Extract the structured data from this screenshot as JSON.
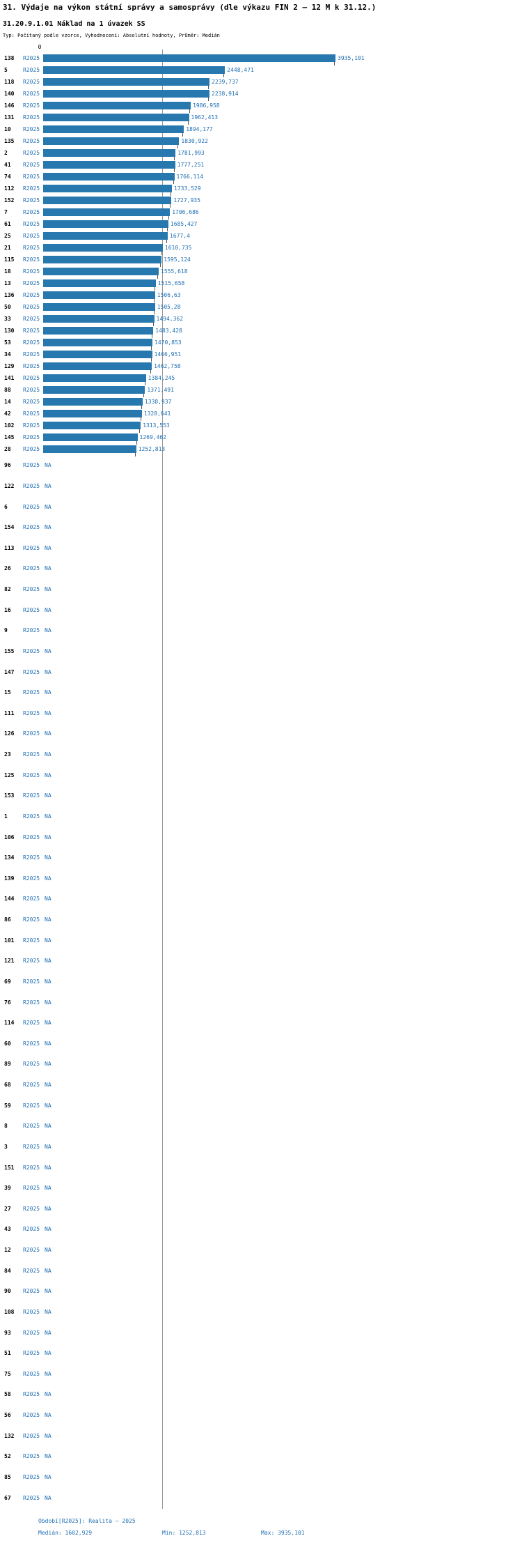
{
  "header": {
    "title": "31. Výdaje na výkon státní správy a samosprávy (dle výkazu FIN 2 – 12 M k 31.12.)",
    "subtitle": "31.20.9.1.01 Náklad na 1 úvazek SS",
    "meta": "Typ: Počítaný podle vzorce, Vyhodnocení: Absolutní hodnoty, Průměr: Medián"
  },
  "axis": {
    "zero_label": "0"
  },
  "footer": {
    "period": "Období[R2025]: Realita – 2025",
    "median": "Medián: 1602,929",
    "min": "Min: 1252,813",
    "max": "Max: 3935,101"
  },
  "colors": {
    "bar": "#2878b0",
    "blue_text": "#1f6fb4",
    "median_line": "#999999",
    "tick": "#555555"
  },
  "chart_data": {
    "type": "bar",
    "orientation": "horizontal",
    "series_label": "R2025",
    "x_axis": {
      "min": 0,
      "max_value": 3935.101,
      "zero_label": "0"
    },
    "median": 1602.929,
    "min": 1252.813,
    "max": 3935.101,
    "na_text": "NA",
    "rows": [
      {
        "id": "138",
        "value": 3935.101,
        "value_label": "3935,101"
      },
      {
        "id": "5",
        "value": 2448.471,
        "value_label": "2448,471"
      },
      {
        "id": "118",
        "value": 2239.737,
        "value_label": "2239,737"
      },
      {
        "id": "140",
        "value": 2238.914,
        "value_label": "2238,914"
      },
      {
        "id": "146",
        "value": 1986.958,
        "value_label": "1986,958"
      },
      {
        "id": "131",
        "value": 1962.413,
        "value_label": "1962,413"
      },
      {
        "id": "10",
        "value": 1894.177,
        "value_label": "1894,177"
      },
      {
        "id": "135",
        "value": 1830.922,
        "value_label": "1830,922"
      },
      {
        "id": "2",
        "value": 1781.993,
        "value_label": "1781,993"
      },
      {
        "id": "41",
        "value": 1777.251,
        "value_label": "1777,251"
      },
      {
        "id": "74",
        "value": 1766.114,
        "value_label": "1766,114"
      },
      {
        "id": "112",
        "value": 1733.529,
        "value_label": "1733,529"
      },
      {
        "id": "152",
        "value": 1727.935,
        "value_label": "1727,935"
      },
      {
        "id": "7",
        "value": 1706.686,
        "value_label": "1706,686"
      },
      {
        "id": "61",
        "value": 1685.427,
        "value_label": "1685,427"
      },
      {
        "id": "25",
        "value": 1677.4,
        "value_label": "1677,4"
      },
      {
        "id": "21",
        "value": 1610.735,
        "value_label": "1610,735"
      },
      {
        "id": "115",
        "value": 1595.124,
        "value_label": "1595,124"
      },
      {
        "id": "18",
        "value": 1555.618,
        "value_label": "1555,618"
      },
      {
        "id": "13",
        "value": 1515.658,
        "value_label": "1515,658"
      },
      {
        "id": "136",
        "value": 1506.63,
        "value_label": "1506,63"
      },
      {
        "id": "50",
        "value": 1505.28,
        "value_label": "1505,28"
      },
      {
        "id": "33",
        "value": 1494.362,
        "value_label": "1494,362"
      },
      {
        "id": "130",
        "value": 1483.428,
        "value_label": "1483,428"
      },
      {
        "id": "53",
        "value": 1470.853,
        "value_label": "1470,853"
      },
      {
        "id": "34",
        "value": 1466.951,
        "value_label": "1466,951"
      },
      {
        "id": "129",
        "value": 1462.758,
        "value_label": "1462,758"
      },
      {
        "id": "141",
        "value": 1384.245,
        "value_label": "1384,245"
      },
      {
        "id": "88",
        "value": 1371.491,
        "value_label": "1371,491"
      },
      {
        "id": "14",
        "value": 1338.937,
        "value_label": "1338,937"
      },
      {
        "id": "42",
        "value": 1328.641,
        "value_label": "1328,641"
      },
      {
        "id": "102",
        "value": 1313.553,
        "value_label": "1313,553"
      },
      {
        "id": "145",
        "value": 1269.462,
        "value_label": "1269,462"
      },
      {
        "id": "28",
        "value": 1252.813,
        "value_label": "1252,813"
      },
      {
        "id": "96",
        "value": null,
        "value_label": "NA"
      },
      {
        "id": "122",
        "value": null,
        "value_label": "NA"
      },
      {
        "id": "6",
        "value": null,
        "value_label": "NA"
      },
      {
        "id": "154",
        "value": null,
        "value_label": "NA"
      },
      {
        "id": "113",
        "value": null,
        "value_label": "NA"
      },
      {
        "id": "26",
        "value": null,
        "value_label": "NA"
      },
      {
        "id": "82",
        "value": null,
        "value_label": "NA"
      },
      {
        "id": "16",
        "value": null,
        "value_label": "NA"
      },
      {
        "id": "9",
        "value": null,
        "value_label": "NA"
      },
      {
        "id": "155",
        "value": null,
        "value_label": "NA"
      },
      {
        "id": "147",
        "value": null,
        "value_label": "NA"
      },
      {
        "id": "15",
        "value": null,
        "value_label": "NA"
      },
      {
        "id": "111",
        "value": null,
        "value_label": "NA"
      },
      {
        "id": "126",
        "value": null,
        "value_label": "NA"
      },
      {
        "id": "23",
        "value": null,
        "value_label": "NA"
      },
      {
        "id": "125",
        "value": null,
        "value_label": "NA"
      },
      {
        "id": "153",
        "value": null,
        "value_label": "NA"
      },
      {
        "id": "1",
        "value": null,
        "value_label": "NA"
      },
      {
        "id": "106",
        "value": null,
        "value_label": "NA"
      },
      {
        "id": "134",
        "value": null,
        "value_label": "NA"
      },
      {
        "id": "139",
        "value": null,
        "value_label": "NA"
      },
      {
        "id": "144",
        "value": null,
        "value_label": "NA"
      },
      {
        "id": "86",
        "value": null,
        "value_label": "NA"
      },
      {
        "id": "101",
        "value": null,
        "value_label": "NA"
      },
      {
        "id": "121",
        "value": null,
        "value_label": "NA"
      },
      {
        "id": "69",
        "value": null,
        "value_label": "NA"
      },
      {
        "id": "76",
        "value": null,
        "value_label": "NA"
      },
      {
        "id": "114",
        "value": null,
        "value_label": "NA"
      },
      {
        "id": "60",
        "value": null,
        "value_label": "NA"
      },
      {
        "id": "89",
        "value": null,
        "value_label": "NA"
      },
      {
        "id": "68",
        "value": null,
        "value_label": "NA"
      },
      {
        "id": "59",
        "value": null,
        "value_label": "NA"
      },
      {
        "id": "8",
        "value": null,
        "value_label": "NA"
      },
      {
        "id": "3",
        "value": null,
        "value_label": "NA"
      },
      {
        "id": "151",
        "value": null,
        "value_label": "NA"
      },
      {
        "id": "39",
        "value": null,
        "value_label": "NA"
      },
      {
        "id": "27",
        "value": null,
        "value_label": "NA"
      },
      {
        "id": "43",
        "value": null,
        "value_label": "NA"
      },
      {
        "id": "12",
        "value": null,
        "value_label": "NA"
      },
      {
        "id": "84",
        "value": null,
        "value_label": "NA"
      },
      {
        "id": "90",
        "value": null,
        "value_label": "NA"
      },
      {
        "id": "108",
        "value": null,
        "value_label": "NA"
      },
      {
        "id": "93",
        "value": null,
        "value_label": "NA"
      },
      {
        "id": "51",
        "value": null,
        "value_label": "NA"
      },
      {
        "id": "75",
        "value": null,
        "value_label": "NA"
      },
      {
        "id": "58",
        "value": null,
        "value_label": "NA"
      },
      {
        "id": "56",
        "value": null,
        "value_label": "NA"
      },
      {
        "id": "132",
        "value": null,
        "value_label": "NA"
      },
      {
        "id": "52",
        "value": null,
        "value_label": "NA"
      },
      {
        "id": "85",
        "value": null,
        "value_label": "NA"
      },
      {
        "id": "67",
        "value": null,
        "value_label": "NA"
      }
    ]
  }
}
